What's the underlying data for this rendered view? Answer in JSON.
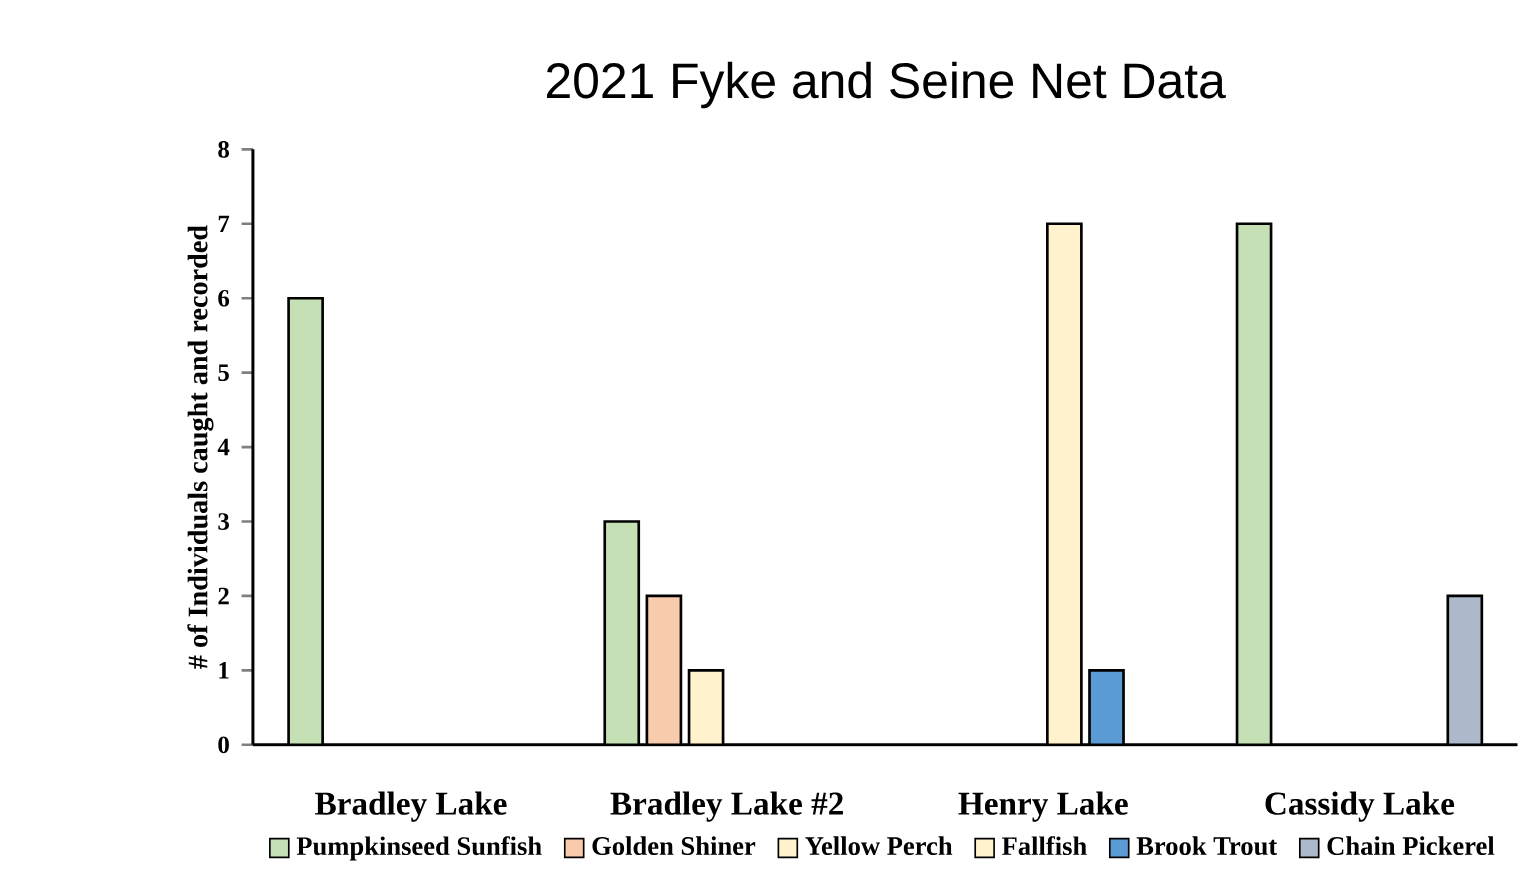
{
  "chart_data": {
    "type": "bar",
    "title": "2021 Fyke and Seine Net Data",
    "ylabel": "# of Individuals  caught and recorded",
    "categories": [
      "Bradley Lake",
      "Bradley Lake #2",
      "Henry Lake",
      "Cassidy Lake"
    ],
    "series": [
      {
        "name": "Pumpkinseed Sunfish",
        "color": "#c5e0b4",
        "values": [
          6,
          3,
          null,
          7
        ]
      },
      {
        "name": "Golden Shiner",
        "color": "#f8cbad",
        "values": [
          null,
          2,
          null,
          null
        ]
      },
      {
        "name": "Yellow Perch",
        "color": "#fff2cc",
        "values": [
          null,
          1,
          null,
          null
        ]
      },
      {
        "name": "Fallfish",
        "color": "#fff2cc",
        "values": [
          null,
          null,
          7,
          null
        ]
      },
      {
        "name": "Brook Trout",
        "color": "#5b9bd5",
        "values": [
          null,
          null,
          1,
          null
        ]
      },
      {
        "name": "Chain Pickerel",
        "color": "#adb9ca",
        "values": [
          null,
          null,
          null,
          2
        ]
      }
    ],
    "ylim": [
      0,
      8
    ],
    "yticks": [
      0,
      1,
      2,
      3,
      4,
      5,
      6,
      7,
      8
    ],
    "grid": false,
    "legend": "bottom"
  }
}
